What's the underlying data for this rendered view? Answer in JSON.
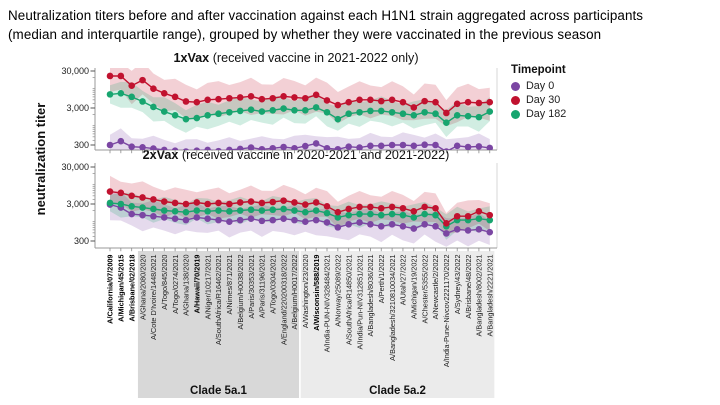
{
  "header": {
    "line1": "Neutralization titers before and after vaccination against each H1N1 strain aggregated across participants",
    "line2": "(median and interquartile range), grouped by whether they were vaccinated in the previous season"
  },
  "y_axis": {
    "label": "neutralization titer",
    "scale": "log",
    "ticks": [
      "30,000",
      "3,000",
      "300"
    ],
    "tick_values": [
      30000,
      3000,
      300
    ]
  },
  "legend": {
    "title": "Timepoint",
    "items": [
      {
        "label": "Day 0",
        "color": "#7b46a3"
      },
      {
        "label": "Day 30",
        "color": "#c1122f"
      },
      {
        "label": "Day 182",
        "color": "#17a56f"
      }
    ]
  },
  "strains": [
    {
      "name": "A/California/07/2009",
      "bold": true
    },
    {
      "name": "A/Michigan/45/2015",
      "bold": true
    },
    {
      "name": "A/Brisbane/02/2018",
      "bold": true
    },
    {
      "name": "A/Ghana/2080/2020",
      "bold": false
    },
    {
      "name": "A/Cote D'Ivoire/1448/2021",
      "bold": false
    },
    {
      "name": "A/Togo/845/2020",
      "bold": false
    },
    {
      "name": "A/Togo/0274/2021",
      "bold": false
    },
    {
      "name": "A/Ghana/138/2020",
      "bold": false
    },
    {
      "name": "A/Hawaii/70/2019",
      "bold": true
    },
    {
      "name": "A/Niger/10217/2021",
      "bold": false
    },
    {
      "name": "A/SouthAfrica/R16462/2021",
      "bold": false
    },
    {
      "name": "A/Nimes/871/2021",
      "bold": false
    },
    {
      "name": "A/Belgium/H0038/2022",
      "bold": false
    },
    {
      "name": "A/Paris/30353/2021",
      "bold": false
    },
    {
      "name": "A/Paris/31196/2021",
      "bold": false
    },
    {
      "name": "A/Togo/0304/2021",
      "bold": false
    },
    {
      "name": "A/England/220200318/2022",
      "bold": false
    },
    {
      "name": "A/Belgium/H0017/2022",
      "bold": false
    },
    {
      "name": "A/Washington/23/2020",
      "bold": false
    },
    {
      "name": "A/Wisconsin/588/2019",
      "bold": true
    },
    {
      "name": "A/India-PUN-NIV328484/2021",
      "bold": false
    },
    {
      "name": "A/Norway/25089/2022",
      "bold": false
    },
    {
      "name": "A/SouthAfrica/R14850/2021",
      "bold": false
    },
    {
      "name": "A/India/Pun-NIV312851/2021",
      "bold": false
    },
    {
      "name": "A/Bangladesh/8036/2021",
      "bold": false
    },
    {
      "name": "A/Perth/1/2022",
      "bold": false
    },
    {
      "name": "A/Bangladesh/3210810034/2021",
      "bold": false
    },
    {
      "name": "A/Utah/27/2022",
      "bold": false
    },
    {
      "name": "A/Michigan/19/2021",
      "bold": false
    },
    {
      "name": "A/Chester/5355/2022",
      "bold": false
    },
    {
      "name": "A/Newcastle/2/2022",
      "bold": false
    },
    {
      "name": "A/India-Pune-Nivcov2221170/2022",
      "bold": false
    },
    {
      "name": "A/Sydney/43/2022",
      "bold": false
    },
    {
      "name": "A/Brisbane/48/2022",
      "bold": false
    },
    {
      "name": "A/Bangladesh/8002/2021",
      "bold": false
    },
    {
      "name": "A/Bangladesh/2221/2021",
      "bold": false
    }
  ],
  "clades": [
    {
      "label": "Clade 5a.1",
      "start_index": 3,
      "end_index": 17,
      "color": "#d8d8d8"
    },
    {
      "label": "Clade 5a.2",
      "start_index": 18,
      "end_index": 35,
      "color": "#ebebeb"
    }
  ],
  "chart_data": [
    {
      "type": "line",
      "panel": "1xVax",
      "title_bold": "1xVax",
      "title_rest": " (received vaccine in 2021-2022 only)",
      "yscale": "log",
      "ylim": [
        220,
        36000
      ],
      "categories_from": "strains",
      "series": [
        {
          "name": "Day 0",
          "color": "#7b46a3",
          "band_factor": 1.9,
          "values": [
            300,
            380,
            270,
            260,
            240,
            220,
            210,
            200,
            210,
            220,
            205,
            220,
            235,
            255,
            230,
            245,
            265,
            245,
            280,
            330,
            245,
            230,
            270,
            255,
            285,
            285,
            300,
            300,
            285,
            305,
            300,
            200,
            285,
            265,
            275,
            250
          ]
        },
        {
          "name": "Day 30",
          "color": "#c1122f",
          "band_factor": 2.7,
          "values": [
            22000,
            22000,
            12000,
            17000,
            10000,
            7500,
            6000,
            4500,
            4300,
            5000,
            5200,
            5500,
            5800,
            6200,
            5200,
            5500,
            6200,
            5800,
            5500,
            6800,
            4800,
            3600,
            4300,
            5000,
            5000,
            4600,
            5000,
            4300,
            3100,
            4600,
            4300,
            2200,
            3900,
            4300,
            4100,
            4300
          ]
        },
        {
          "name": "Day 182",
          "color": "#17a56f",
          "band_factor": 2.1,
          "values": [
            7000,
            7500,
            6000,
            4500,
            3200,
            2400,
            1900,
            1500,
            1600,
            1900,
            2100,
            2300,
            2500,
            2700,
            2400,
            2600,
            2900,
            2600,
            2600,
            3100,
            2300,
            1500,
            2100,
            2300,
            2500,
            2500,
            2300,
            2100,
            1900,
            2300,
            2100,
            1200,
            1900,
            1800,
            1700,
            2400
          ]
        }
      ]
    },
    {
      "type": "line",
      "panel": "2xVax",
      "title_bold": "2xVax",
      "title_rest": " (received vaccine in 2020-2021 and 2021-2022)",
      "yscale": "log",
      "ylim": [
        200,
        38000
      ],
      "categories_from": "strains",
      "series": [
        {
          "name": "Day 0",
          "color": "#7b46a3",
          "band_factor": 2.3,
          "values": [
            2900,
            2400,
            1600,
            1500,
            1400,
            1300,
            1200,
            1100,
            1300,
            1200,
            1100,
            1000,
            1100,
            1200,
            1050,
            1100,
            1200,
            1100,
            1000,
            1100,
            950,
            700,
            850,
            950,
            850,
            750,
            850,
            750,
            650,
            850,
            750,
            480,
            620,
            580,
            620,
            520
          ]
        },
        {
          "name": "Day 30",
          "color": "#c1122f",
          "band_factor": 2.3,
          "values": [
            6500,
            6000,
            5000,
            4500,
            4000,
            3500,
            3200,
            3000,
            3300,
            3000,
            3200,
            3000,
            3300,
            3500,
            3200,
            3400,
            3700,
            3300,
            2900,
            3300,
            2600,
            1800,
            2200,
            2500,
            2500,
            2300,
            2500,
            2300,
            1900,
            2500,
            2300,
            900,
            1400,
            1400,
            1900,
            1500
          ]
        },
        {
          "name": "Day 182",
          "color": "#17a56f",
          "band_factor": 2.0,
          "values": [
            3200,
            3000,
            2600,
            2400,
            2200,
            2000,
            1900,
            1800,
            2000,
            1900,
            2000,
            1900,
            2000,
            2100,
            2000,
            2100,
            2200,
            2000,
            1800,
            2000,
            1700,
            1300,
            1500,
            1600,
            1600,
            1500,
            1600,
            1500,
            1300,
            1600,
            1500,
            750,
            1100,
            1100,
            1200,
            1100
          ]
        }
      ]
    }
  ]
}
